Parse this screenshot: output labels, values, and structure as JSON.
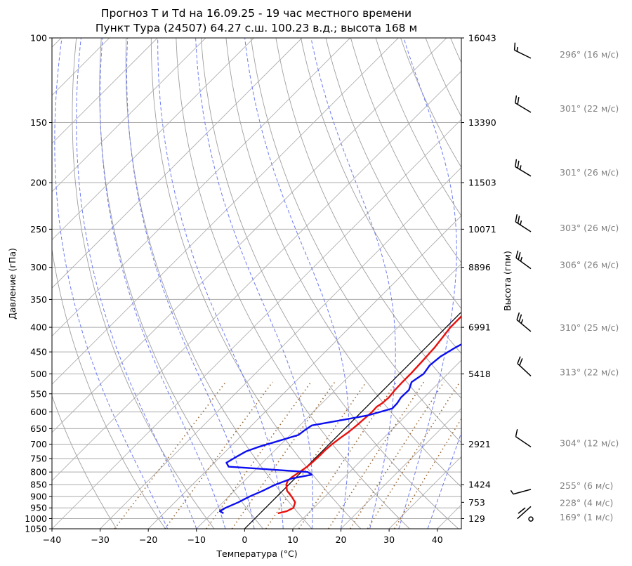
{
  "chart_data": {
    "type": "line",
    "title_line1": "Прогноз T и Td на 16.09.25 - 19 час местного времени",
    "title_line2": "Пункт Тура (24507) 64.27 с.ш. 100.23 в.д.; высота 168 м",
    "xlabel": "Температура (°C)",
    "ylabel": "Давление (гПа)",
    "ylabel_right": "Высота (гпм)",
    "xlim": [
      -40,
      45
    ],
    "ylim": [
      1050,
      100
    ],
    "y_scale": "log",
    "grid": true,
    "x_ticks": [
      "−40",
      "−30",
      "−20",
      "−10",
      "0",
      "10",
      "20",
      "30",
      "40"
    ],
    "x_tick_values": [
      -40,
      -30,
      -20,
      -10,
      0,
      10,
      20,
      30,
      40
    ],
    "p_ticks": [
      100,
      150,
      200,
      250,
      300,
      350,
      400,
      450,
      500,
      550,
      600,
      650,
      700,
      750,
      800,
      850,
      900,
      950,
      1000,
      1050
    ],
    "height_ticks": [
      {
        "p": 100,
        "label": "16043"
      },
      {
        "p": 150,
        "label": "13390"
      },
      {
        "p": 200,
        "label": "11503"
      },
      {
        "p": 250,
        "label": "10071"
      },
      {
        "p": 300,
        "label": "8896"
      },
      {
        "p": 400,
        "label": "6991"
      },
      {
        "p": 500,
        "label": "5418"
      },
      {
        "p": 700,
        "label": "2921"
      },
      {
        "p": 850,
        "label": "1424"
      },
      {
        "p": 925,
        "label": "753"
      },
      {
        "p": 1000,
        "label": "129"
      }
    ],
    "series": [
      {
        "color": "#e8100e",
        "p": [
          975,
          965,
          950,
          925,
          900,
          875,
          850,
          835,
          820,
          800,
          780,
          760,
          740,
          720,
          700,
          680,
          660,
          640,
          620,
          600,
          585,
          575,
          560,
          540,
          520,
          500,
          470,
          440,
          400,
          350,
          320,
          290,
          270,
          255,
          240,
          225,
          205,
          185,
          165,
          150,
          130,
          115,
          104
        ],
        "t": [
          3.7,
          5.1,
          5.8,
          5.0,
          3.1,
          0.9,
          -0.5,
          -1.0,
          -0.9,
          -0.4,
          0.1,
          0.3,
          0.4,
          0.4,
          0.6,
          1.0,
          1.5,
          1.8,
          2.0,
          2.2,
          2.1,
          2.5,
          2.7,
          2.4,
          2.3,
          2.3,
          2.1,
          1.8,
          0.9,
          0.9,
          0.5,
          -0.3,
          -0.1,
          1.0,
          5.0,
          10.0,
          14.0,
          17.0,
          19.0,
          19.8,
          20.9,
          22.7,
          23.4
        ]
      },
      {
        "color": "#0b0ef0",
        "p": [
          975,
          965,
          950,
          925,
          900,
          875,
          850,
          825,
          810,
          800,
          790,
          780,
          765,
          745,
          725,
          710,
          690,
          670,
          655,
          640,
          625,
          610,
          590,
          575,
          560,
          540,
          520,
          500,
          480,
          460,
          440,
          420,
          400,
          380,
          350,
          320,
          300,
          280,
          262,
          250,
          238,
          225,
          205,
          190,
          175,
          160,
          150,
          135,
          122,
          112,
          104
        ],
        "td": [
          -7.6,
          -8.8,
          -8.3,
          -6.8,
          -5.7,
          -4.1,
          -2.8,
          -0.6,
          2.7,
          1.3,
          -7.3,
          -16.2,
          -17.5,
          -16.7,
          -15.8,
          -14.2,
          -11.3,
          -8.3,
          -8.0,
          -7.5,
          -2.8,
          2.0,
          5.7,
          5.6,
          5.2,
          5.3,
          4.2,
          5.0,
          4.5,
          4.9,
          6.2,
          8.0,
          9.3,
          9.6,
          10.5,
          11.5,
          11.6,
          11.6,
          14.6,
          13.5,
          11.3,
          14.1,
          18.2,
          20.9,
          21.8,
          22.8,
          23.1,
          24.7,
          27.1,
          28.1,
          28.9
        ]
      }
    ],
    "parcel": {
      "color": "#000000",
      "p": [
        1050,
        373
      ],
      "t": [
        0,
        0
      ]
    },
    "wind_barbs": [
      {
        "p": 108,
        "label": "296° (16 м/с)"
      },
      {
        "p": 140,
        "label": "301° (22 м/с)"
      },
      {
        "p": 190,
        "label": "301° (26 м/с)"
      },
      {
        "p": 248,
        "label": "303° (26 м/с)"
      },
      {
        "p": 296,
        "label": "306° (26 м/с)"
      },
      {
        "p": 400,
        "label": "310° (25 м/с)"
      },
      {
        "p": 495,
        "label": "313° (22 м/с)"
      },
      {
        "p": 695,
        "label": "304° (12 м/с)"
      },
      {
        "p": 852,
        "label": "255° (6 м/с)"
      },
      {
        "p": 925,
        "label": "228° (4 м/с)"
      },
      {
        "p": 992,
        "label": "169° (1 м/с)"
      }
    ]
  }
}
